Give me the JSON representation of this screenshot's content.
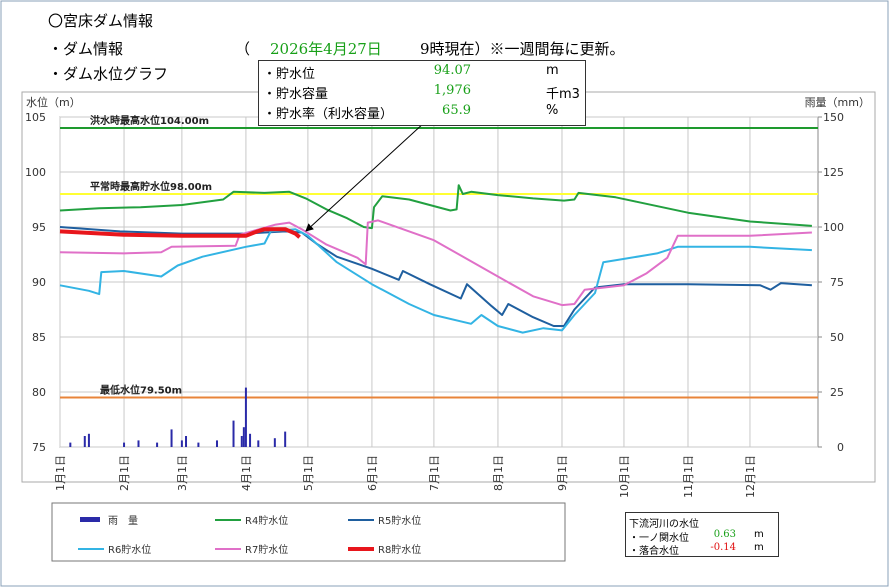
{
  "header": {
    "title": "〇宮床ダム情報",
    "section1": "・ダム情報",
    "open_paren": "（",
    "date": "2026年4月27日",
    "time_note": "9時現在）※一週間毎に更新。",
    "section2": "・ダム水位グラフ"
  },
  "info_box": {
    "rows": [
      [
        "・貯水位",
        "94.07",
        "m"
      ],
      [
        "・貯水容量",
        "1,976",
        "千m3"
      ],
      [
        "・貯水率（利水容量）",
        "65.9",
        "%"
      ]
    ]
  },
  "chart_data": {
    "type": "line",
    "ylabel": "水位（m）",
    "y2label": "雨量（mm）",
    "xlim": [
      1,
      366
    ],
    "xticks": [
      {
        "value": 1,
        "label": "1月1日"
      },
      {
        "value": 32,
        "label": "2月1日"
      },
      {
        "value": 60,
        "label": "3月1日"
      },
      {
        "value": 91,
        "label": "4月1日"
      },
      {
        "value": 121,
        "label": "5月1日"
      },
      {
        "value": 152,
        "label": "6月1日"
      },
      {
        "value": 182,
        "label": "7月1日"
      },
      {
        "value": 213,
        "label": "8月1日"
      },
      {
        "value": 244,
        "label": "9月1日"
      },
      {
        "value": 274,
        "label": "10月1日"
      },
      {
        "value": 305,
        "label": "11月1日"
      },
      {
        "value": 335,
        "label": "12月1日"
      }
    ],
    "ylim": [
      75,
      105
    ],
    "yticks": [
      75,
      80,
      85,
      90,
      95,
      100,
      105
    ],
    "y2lim": [
      0,
      150
    ],
    "y2ticks": [
      0,
      25,
      50,
      75,
      100,
      125,
      150
    ],
    "grid": true,
    "legend": "bottom",
    "reference_lines": [
      {
        "label": "洪水時最高水位104.00m",
        "value": 104,
        "color": "#1e9a2e"
      },
      {
        "label": "平常時最高貯水位98.00m",
        "value": 98,
        "color": "#ffff33"
      },
      {
        "label": "最低水位79.50m",
        "value": 79.5,
        "color": "#e8843a"
      }
    ],
    "series": [
      {
        "name": "雨　量",
        "type": "bar",
        "axis": "y2",
        "color": "#2a2aa8",
        "x": [
          6,
          13,
          15,
          32,
          39,
          48,
          55,
          60,
          62,
          68,
          77,
          85,
          89,
          90,
          91,
          93,
          97,
          105,
          110
        ],
        "values": [
          2,
          5,
          6,
          2,
          3,
          2,
          8,
          3,
          5,
          2,
          3,
          12,
          5,
          9,
          27,
          6,
          3,
          4,
          7
        ]
      },
      {
        "name": "R4貯水位",
        "type": "line",
        "color": "#22a040",
        "width": 2,
        "x": [
          1,
          20,
          40,
          60,
          80,
          85,
          100,
          112,
          120,
          130,
          140,
          148,
          152,
          153,
          157,
          170,
          190,
          193,
          194,
          196,
          200,
          213,
          230,
          245,
          250,
          252,
          270,
          280,
          305,
          320,
          335,
          365
        ],
        "values": [
          96.5,
          96.7,
          96.8,
          97.0,
          97.5,
          98.2,
          98.1,
          98.2,
          97.6,
          96.6,
          95.8,
          95.0,
          94.9,
          96.8,
          97.8,
          97.5,
          96.5,
          96.6,
          98.8,
          98.0,
          98.2,
          97.9,
          97.6,
          97.4,
          97.5,
          98.1,
          97.7,
          97.3,
          96.3,
          95.9,
          95.5,
          95.1
        ]
      },
      {
        "name": "R5貯水位",
        "type": "line",
        "color": "#1f5f9f",
        "width": 2,
        "x": [
          1,
          30,
          60,
          91,
          110,
          118,
          125,
          135,
          152,
          165,
          167,
          180,
          195,
          198,
          210,
          215,
          218,
          230,
          240,
          245,
          250,
          260,
          274,
          305,
          340,
          345,
          350,
          365
        ],
        "values": [
          95.0,
          94.6,
          94.4,
          94.4,
          94.6,
          94.5,
          93.5,
          92.3,
          91.2,
          90.2,
          91.0,
          89.8,
          88.5,
          89.8,
          87.8,
          87.0,
          88.0,
          86.8,
          86.0,
          86.0,
          87.5,
          89.5,
          89.8,
          89.8,
          89.7,
          89.3,
          89.9,
          89.7
        ]
      },
      {
        "name": "R6貯水位",
        "type": "line",
        "color": "#33b4e4",
        "width": 2,
        "x": [
          1,
          15,
          20,
          21,
          32,
          50,
          58,
          70,
          91,
          100,
          103,
          115,
          121,
          135,
          152,
          170,
          182,
          200,
          205,
          213,
          225,
          235,
          244,
          250,
          260,
          264,
          274,
          290,
          300,
          335,
          365
        ],
        "values": [
          89.7,
          89.2,
          88.9,
          90.9,
          91.0,
          90.5,
          91.5,
          92.3,
          93.2,
          93.5,
          94.6,
          94.8,
          94.2,
          91.8,
          89.8,
          88.0,
          87.0,
          86.2,
          87.0,
          86.0,
          85.4,
          85.8,
          85.6,
          87.0,
          89.0,
          91.8,
          92.1,
          92.6,
          93.2,
          93.2,
          92.9
        ]
      },
      {
        "name": "R7貯水位",
        "type": "line",
        "color": "#e070c8",
        "width": 2,
        "x": [
          1,
          32,
          50,
          55,
          86,
          88,
          105,
          112,
          118,
          130,
          145,
          149,
          150,
          155,
          182,
          213,
          230,
          244,
          250,
          255,
          274,
          285,
          295,
          300,
          335,
          365
        ],
        "values": [
          92.7,
          92.6,
          92.7,
          93.2,
          93.3,
          94.3,
          95.2,
          95.4,
          94.8,
          93.4,
          92.2,
          91.6,
          95.4,
          95.6,
          93.8,
          90.5,
          88.7,
          87.9,
          88.0,
          89.3,
          89.7,
          90.8,
          92.2,
          94.2,
          94.2,
          94.5
        ]
      },
      {
        "name": "R8貯水位",
        "type": "line",
        "color": "#e8161c",
        "width": 4,
        "x": [
          1,
          32,
          60,
          91,
          95,
          100,
          110,
          115,
          117
        ],
        "values": [
          94.6,
          94.3,
          94.2,
          94.2,
          94.5,
          94.8,
          94.8,
          94.4,
          94.07
        ]
      }
    ]
  },
  "river_box": {
    "title": "下流河川の水位",
    "rows": [
      [
        "・一ノ関水位",
        "0.63",
        "m"
      ],
      [
        "・落合水位",
        "-0.14",
        "m"
      ]
    ]
  }
}
